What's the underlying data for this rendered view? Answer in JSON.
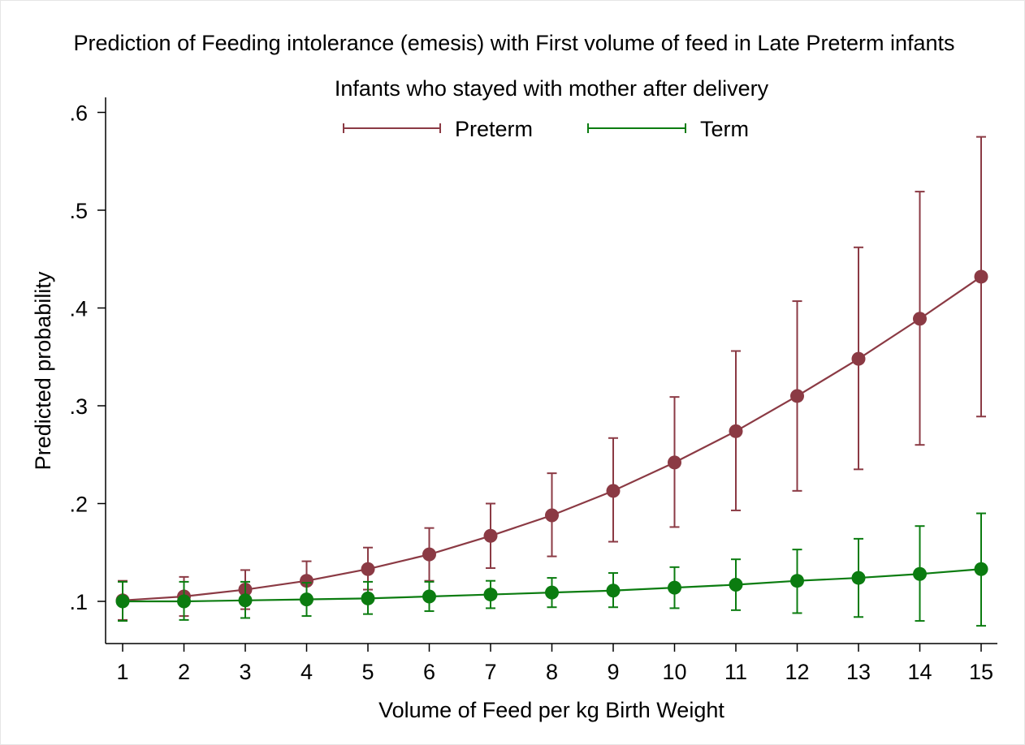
{
  "chart_data": {
    "type": "line",
    "title": "Prediction of Feeding intolerance (emesis) with First volume of feed in Late Preterm infants",
    "subtitle": "Infants who stayed with mother after delivery",
    "xlabel": "Volume of Feed per kg Birth Weight",
    "ylabel": "Predicted probability",
    "x": [
      1,
      2,
      3,
      4,
      5,
      6,
      7,
      8,
      9,
      10,
      11,
      12,
      13,
      14,
      15
    ],
    "xlim": [
      1,
      15
    ],
    "ylim": [
      0.05,
      0.61
    ],
    "x_ticks": [
      "1",
      "2",
      "3",
      "4",
      "5",
      "6",
      "7",
      "8",
      "9",
      "10",
      "11",
      "12",
      "13",
      "14",
      "15"
    ],
    "y_ticks": [
      {
        "value": 0.1,
        "label": ".1"
      },
      {
        "value": 0.2,
        "label": ".2"
      },
      {
        "value": 0.3,
        "label": ".3"
      },
      {
        "value": 0.4,
        "label": ".4"
      },
      {
        "value": 0.5,
        "label": ".5"
      },
      {
        "value": 0.6,
        "label": ".6"
      }
    ],
    "grid": false,
    "legend_position": "top-center",
    "series": [
      {
        "name": "Preterm",
        "color": "#8b3a44",
        "values": [
          0.101,
          0.105,
          0.112,
          0.121,
          0.133,
          0.148,
          0.167,
          0.188,
          0.213,
          0.242,
          0.274,
          0.31,
          0.348,
          0.389,
          0.432
        ],
        "ci_lower": [
          0.081,
          0.085,
          0.092,
          0.101,
          0.112,
          0.121,
          0.134,
          0.146,
          0.161,
          0.176,
          0.193,
          0.213,
          0.235,
          0.26,
          0.289
        ],
        "ci_upper": [
          0.121,
          0.125,
          0.132,
          0.141,
          0.155,
          0.175,
          0.2,
          0.231,
          0.267,
          0.309,
          0.356,
          0.407,
          0.462,
          0.519,
          0.575
        ]
      },
      {
        "name": "Term",
        "color": "#0b7c10",
        "values": [
          0.1,
          0.1,
          0.101,
          0.102,
          0.103,
          0.105,
          0.107,
          0.109,
          0.111,
          0.114,
          0.117,
          0.121,
          0.124,
          0.128,
          0.133
        ],
        "ci_lower": [
          0.08,
          0.081,
          0.083,
          0.085,
          0.087,
          0.09,
          0.093,
          0.094,
          0.094,
          0.093,
          0.091,
          0.088,
          0.084,
          0.08,
          0.075
        ],
        "ci_upper": [
          0.12,
          0.12,
          0.12,
          0.119,
          0.12,
          0.12,
          0.121,
          0.124,
          0.129,
          0.135,
          0.143,
          0.153,
          0.164,
          0.177,
          0.19
        ]
      }
    ]
  }
}
